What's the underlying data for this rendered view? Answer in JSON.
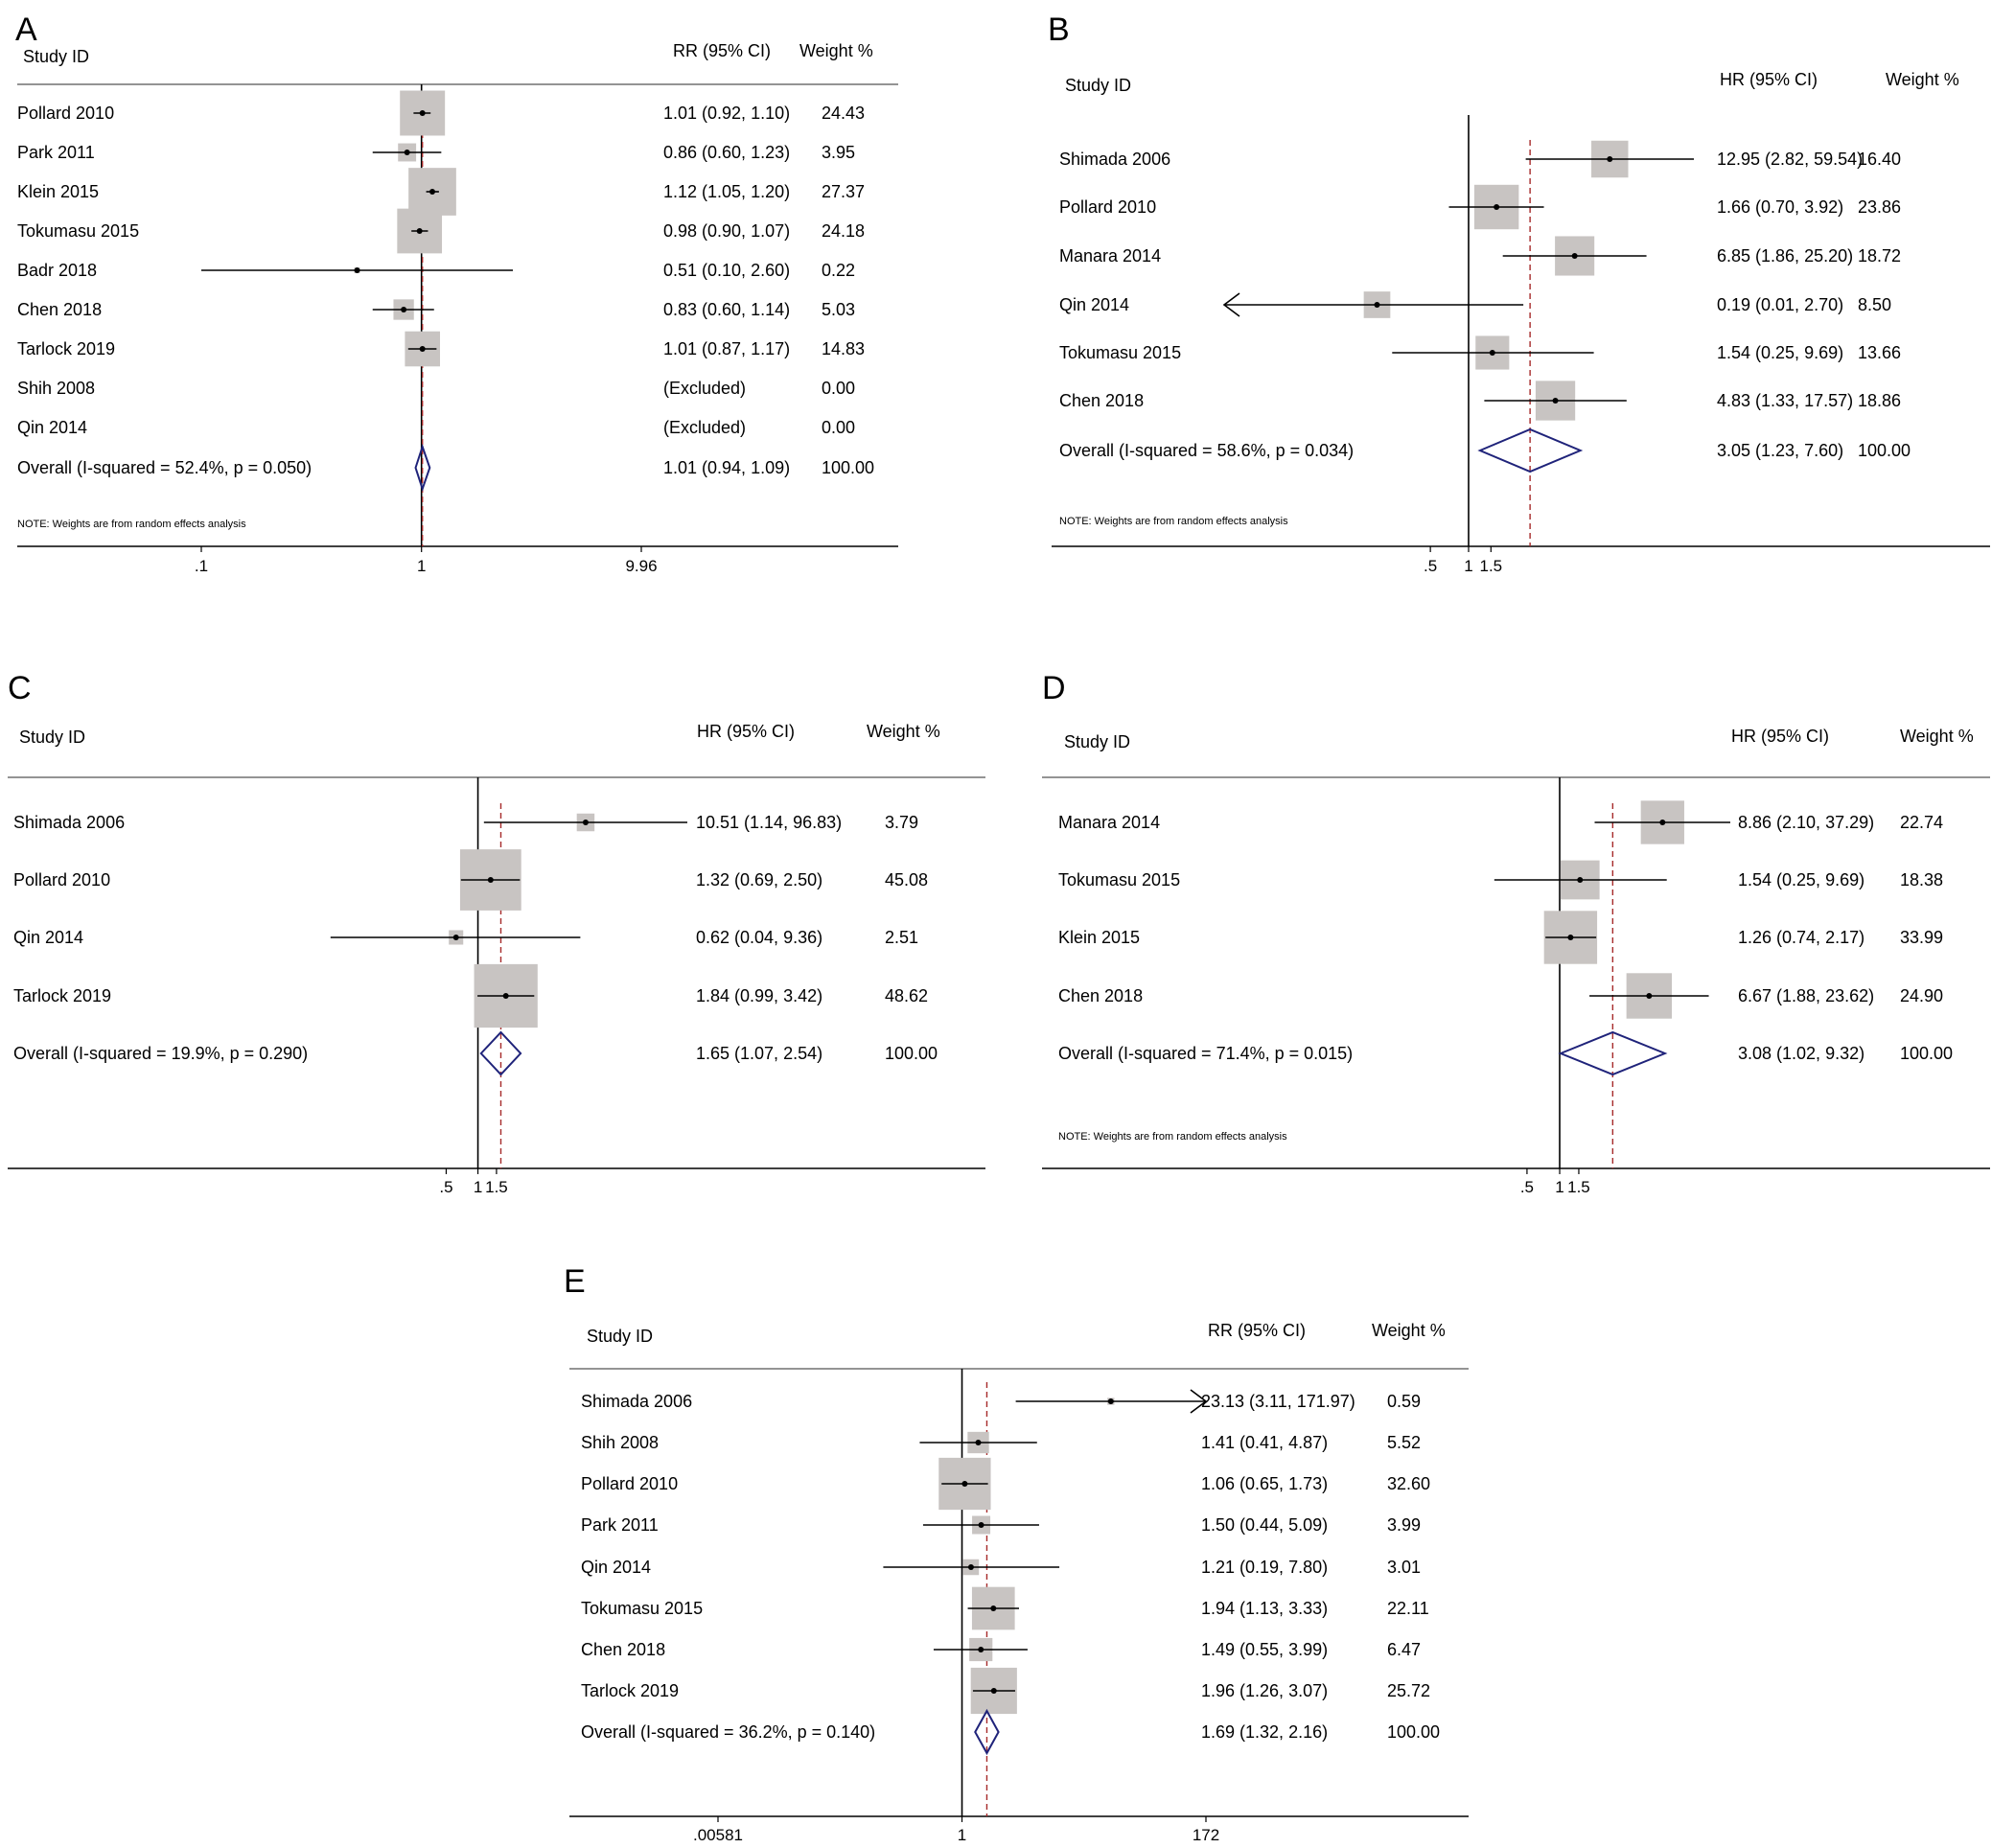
{
  "colors": {
    "text": "#000000",
    "box": "#c8c4c2",
    "null_line": "#000000",
    "overall_line": "#a62a2a",
    "diamond": "#1f237a",
    "frame": "#555555"
  },
  "chart_data": [
    {
      "type": "forest",
      "panel_label": "A",
      "x_scale": "log",
      "study_header": "Study ID",
      "effect_header": "RR (95% CI)",
      "weight_header": "Weight %",
      "note": "NOTE: Weights are from random effects analysis",
      "null_value": 1,
      "overall_value": 1.01,
      "xlim": [
        0.1,
        9.96
      ],
      "ticks": [
        {
          "value": 0.1,
          "label": ".1"
        },
        {
          "value": 1,
          "label": "1"
        },
        {
          "value": 9.96,
          "label": "9.96"
        }
      ],
      "rows": [
        {
          "study": "Pollard 2010",
          "est": 1.01,
          "lo": 0.92,
          "hi": 1.1,
          "effect_text": "1.01 (0.92, 1.10)",
          "weight": 24.43,
          "weight_text": "24.43"
        },
        {
          "study": "Park 2011",
          "est": 0.86,
          "lo": 0.6,
          "hi": 1.23,
          "effect_text": "0.86 (0.60, 1.23)",
          "weight": 3.95,
          "weight_text": "3.95"
        },
        {
          "study": "Klein 2015",
          "est": 1.12,
          "lo": 1.05,
          "hi": 1.2,
          "effect_text": "1.12 (1.05, 1.20)",
          "weight": 27.37,
          "weight_text": "27.37"
        },
        {
          "study": "Tokumasu 2015",
          "est": 0.98,
          "lo": 0.9,
          "hi": 1.07,
          "effect_text": "0.98 (0.90, 1.07)",
          "weight": 24.18,
          "weight_text": "24.18"
        },
        {
          "study": "Badr 2018",
          "est": 0.51,
          "lo": 0.1,
          "hi": 2.6,
          "effect_text": "0.51 (0.10, 2.60)",
          "weight": 0.22,
          "weight_text": "0.22"
        },
        {
          "study": "Chen 2018",
          "est": 0.83,
          "lo": 0.6,
          "hi": 1.14,
          "effect_text": "0.83 (0.60, 1.14)",
          "weight": 5.03,
          "weight_text": "5.03"
        },
        {
          "study": "Tarlock 2019",
          "est": 1.01,
          "lo": 0.87,
          "hi": 1.17,
          "effect_text": "1.01 (0.87, 1.17)",
          "weight": 14.83,
          "weight_text": "14.83"
        },
        {
          "study": "Shih 2008",
          "est": null,
          "lo": null,
          "hi": null,
          "effect_text": "(Excluded)",
          "weight": 0,
          "weight_text": "0.00"
        },
        {
          "study": "Qin 2014",
          "est": null,
          "lo": null,
          "hi": null,
          "effect_text": "(Excluded)",
          "weight": 0,
          "weight_text": "0.00"
        }
      ],
      "overall": {
        "label": "Overall (I-squared = 52.4%, p = 0.050)",
        "est": 1.01,
        "lo": 0.94,
        "hi": 1.09,
        "effect_text": "1.01 (0.94, 1.09)",
        "weight_text": "100.00"
      }
    },
    {
      "type": "forest",
      "panel_label": "B",
      "x_scale": "log",
      "study_header": "Study ID",
      "effect_header": "HR (95% CI)",
      "weight_header": "Weight %",
      "note": "NOTE: Weights are from random effects analysis",
      "null_value": 1,
      "overall_value": 3.05,
      "xlim": [
        0.0168,
        59.54
      ],
      "ticks": [
        {
          "value": 0.5,
          "label": ".5"
        },
        {
          "value": 1,
          "label": "1"
        },
        {
          "value": 1.5,
          "label": "1.5"
        }
      ],
      "rows": [
        {
          "study": "Shimada 2006",
          "est": 12.95,
          "lo": 2.82,
          "hi": 59.54,
          "effect_text": "12.95 (2.82, 59.54)",
          "weight": 16.4,
          "weight_text": "16.40"
        },
        {
          "study": "Pollard 2010",
          "est": 1.66,
          "lo": 0.7,
          "hi": 3.92,
          "effect_text": "1.66 (0.70, 3.92)",
          "weight": 23.86,
          "weight_text": "23.86"
        },
        {
          "study": "Manara 2014",
          "est": 6.85,
          "lo": 1.86,
          "hi": 25.2,
          "effect_text": "6.85 (1.86, 25.20)",
          "weight": 18.72,
          "weight_text": "18.72"
        },
        {
          "study": "Qin 2014",
          "est": 0.19,
          "lo": 0.01,
          "hi": 2.7,
          "effect_text": "0.19 (0.01, 2.70)",
          "weight": 8.5,
          "weight_text": "8.50",
          "arrow_left": true
        },
        {
          "study": "Tokumasu 2015",
          "est": 1.54,
          "lo": 0.25,
          "hi": 9.69,
          "effect_text": "1.54 (0.25, 9.69)",
          "weight": 13.66,
          "weight_text": "13.66"
        },
        {
          "study": "Chen 2018",
          "est": 4.83,
          "lo": 1.33,
          "hi": 17.57,
          "effect_text": "4.83 (1.33, 17.57)",
          "weight": 18.86,
          "weight_text": "18.86"
        }
      ],
      "overall": {
        "label": "Overall (I-squared = 58.6%, p = 0.034)",
        "est": 3.05,
        "lo": 1.23,
        "hi": 7.6,
        "effect_text": "3.05 (1.23, 7.60)",
        "weight_text": "100.00"
      }
    },
    {
      "type": "forest",
      "panel_label": "C",
      "x_scale": "log",
      "study_header": "Study ID",
      "effect_header": "HR (95% CI)",
      "weight_header": "Weight %",
      "note": "",
      "null_value": 1,
      "overall_value": 1.65,
      "xlim": [
        0.0103,
        96.83
      ],
      "ticks": [
        {
          "value": 0.5,
          "label": ".5"
        },
        {
          "value": 1,
          "label": "1"
        },
        {
          "value": 1.5,
          "label": "1.5"
        }
      ],
      "rows": [
        {
          "study": "Shimada 2006",
          "est": 10.51,
          "lo": 1.14,
          "hi": 96.83,
          "effect_text": "10.51 (1.14, 96.83)",
          "weight": 3.79,
          "weight_text": "3.79"
        },
        {
          "study": "Pollard 2010",
          "est": 1.32,
          "lo": 0.69,
          "hi": 2.5,
          "effect_text": "1.32 (0.69, 2.50)",
          "weight": 45.08,
          "weight_text": "45.08"
        },
        {
          "study": "Qin 2014",
          "est": 0.62,
          "lo": 0.04,
          "hi": 9.36,
          "effect_text": "0.62 (0.04, 9.36)",
          "weight": 2.51,
          "weight_text": "2.51"
        },
        {
          "study": "Tarlock 2019",
          "est": 1.84,
          "lo": 0.99,
          "hi": 3.42,
          "effect_text": "1.84 (0.99, 3.42)",
          "weight": 48.62,
          "weight_text": "48.62"
        }
      ],
      "overall": {
        "label": "Overall (I-squared = 19.9%, p = 0.290)",
        "est": 1.65,
        "lo": 1.07,
        "hi": 2.54,
        "effect_text": "1.65 (1.07, 2.54)",
        "weight_text": "100.00"
      }
    },
    {
      "type": "forest",
      "panel_label": "D",
      "x_scale": "log",
      "study_header": "Study ID",
      "effect_header": "HR (95% CI)",
      "weight_header": "Weight %",
      "note": "NOTE: Weights are from random effects analysis",
      "null_value": 1,
      "overall_value": 3.08,
      "xlim": [
        0.0268,
        37.29
      ],
      "ticks": [
        {
          "value": 0.5,
          "label": ".5"
        },
        {
          "value": 1,
          "label": "1"
        },
        {
          "value": 1.5,
          "label": "1.5"
        }
      ],
      "rows": [
        {
          "study": "Manara 2014",
          "est": 8.86,
          "lo": 2.1,
          "hi": 37.29,
          "effect_text": "8.86 (2.10, 37.29)",
          "weight": 22.74,
          "weight_text": "22.74"
        },
        {
          "study": "Tokumasu 2015",
          "est": 1.54,
          "lo": 0.25,
          "hi": 9.69,
          "effect_text": "1.54 (0.25, 9.69)",
          "weight": 18.38,
          "weight_text": "18.38"
        },
        {
          "study": "Klein 2015",
          "est": 1.26,
          "lo": 0.74,
          "hi": 2.17,
          "effect_text": "1.26 (0.74, 2.17)",
          "weight": 33.99,
          "weight_text": "33.99"
        },
        {
          "study": "Chen 2018",
          "est": 6.67,
          "lo": 1.88,
          "hi": 23.62,
          "effect_text": "6.67 (1.88, 23.62)",
          "weight": 24.9,
          "weight_text": "24.90"
        }
      ],
      "overall": {
        "label": "Overall (I-squared = 71.4%, p = 0.015)",
        "est": 3.08,
        "lo": 1.02,
        "hi": 9.32,
        "effect_text": "3.08 (1.02, 9.32)",
        "weight_text": "100.00"
      }
    },
    {
      "type": "forest",
      "panel_label": "E",
      "x_scale": "log",
      "study_header": "Study ID",
      "effect_header": "RR (95% CI)",
      "weight_header": "Weight %",
      "note": "",
      "null_value": 1,
      "overall_value": 1.69,
      "xlim": [
        0.00581,
        172
      ],
      "ticks": [
        {
          "value": 0.00581,
          "label": ".00581"
        },
        {
          "value": 1,
          "label": "1"
        },
        {
          "value": 172,
          "label": "172"
        }
      ],
      "rows": [
        {
          "study": "Shimada 2006",
          "est": 23.13,
          "lo": 3.11,
          "hi": 171.97,
          "effect_text": "23.13 (3.11, 171.97)",
          "weight": 0.59,
          "weight_text": "0.59",
          "arrow_right": true
        },
        {
          "study": "Shih 2008",
          "est": 1.41,
          "lo": 0.41,
          "hi": 4.87,
          "effect_text": "1.41 (0.41, 4.87)",
          "weight": 5.52,
          "weight_text": "5.52"
        },
        {
          "study": "Pollard 2010",
          "est": 1.06,
          "lo": 0.65,
          "hi": 1.73,
          "effect_text": "1.06 (0.65, 1.73)",
          "weight": 32.6,
          "weight_text": "32.60"
        },
        {
          "study": "Park 2011",
          "est": 1.5,
          "lo": 0.44,
          "hi": 5.09,
          "effect_text": "1.50 (0.44, 5.09)",
          "weight": 3.99,
          "weight_text": "3.99"
        },
        {
          "study": "Qin 2014",
          "est": 1.21,
          "lo": 0.19,
          "hi": 7.8,
          "effect_text": "1.21 (0.19, 7.80)",
          "weight": 3.01,
          "weight_text": "3.01"
        },
        {
          "study": "Tokumasu 2015",
          "est": 1.94,
          "lo": 1.13,
          "hi": 3.33,
          "effect_text": "1.94 (1.13, 3.33)",
          "weight": 22.11,
          "weight_text": "22.11"
        },
        {
          "study": "Chen 2018",
          "est": 1.49,
          "lo": 0.55,
          "hi": 3.99,
          "effect_text": "1.49 (0.55, 3.99)",
          "weight": 6.47,
          "weight_text": "6.47"
        },
        {
          "study": "Tarlock 2019",
          "est": 1.96,
          "lo": 1.26,
          "hi": 3.07,
          "effect_text": "1.96 (1.26, 3.07)",
          "weight": 25.72,
          "weight_text": "25.72"
        }
      ],
      "overall": {
        "label": "Overall (I-squared = 36.2%, p = 0.140)",
        "est": 1.69,
        "lo": 1.32,
        "hi": 2.16,
        "effect_text": "1.69 (1.32, 2.16)",
        "weight_text": "100.00"
      }
    }
  ]
}
